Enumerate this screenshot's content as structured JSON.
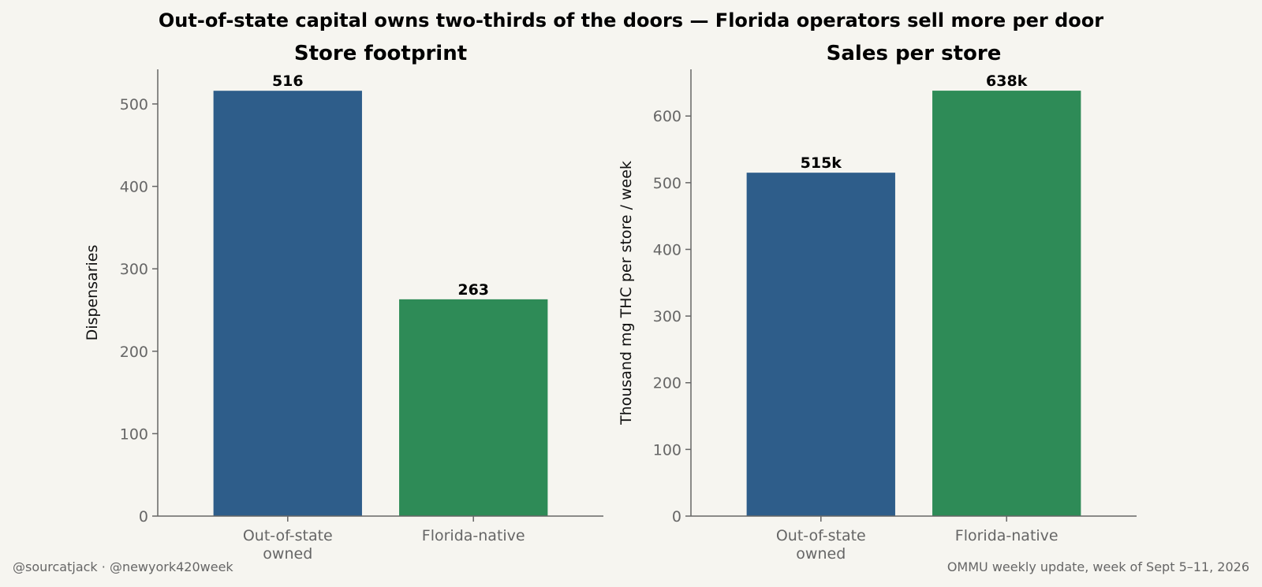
{
  "title": "Out-of-state capital owns two-thirds of the doors — Florida operators sell more per door",
  "footer": {
    "left": "@sourcatjack · @newyork420week",
    "right": "OMMU weekly update, week of Sept 5–11, 2026"
  },
  "colors": {
    "out_of_state": "#2e5d8a",
    "florida_native": "#2e8b57",
    "background": "#f6f5f0",
    "axis": "#666666",
    "tick_text": "#666666"
  },
  "chart_data": [
    {
      "type": "bar",
      "title": "Store footprint",
      "categories": [
        "Out-of-state\nowned",
        "Florida-native"
      ],
      "values": [
        516,
        263
      ],
      "data_labels": [
        "516",
        "263"
      ],
      "xlabel": "",
      "ylabel": "Dispensaries",
      "ylim": [
        0,
        542
      ],
      "yticks": [
        0,
        100,
        200,
        300,
        400,
        500
      ],
      "grid": false,
      "legend": "none"
    },
    {
      "type": "bar",
      "title": "Sales per store",
      "categories": [
        "Out-of-state\nowned",
        "Florida-native"
      ],
      "values": [
        515,
        638
      ],
      "data_labels": [
        "515k",
        "638k"
      ],
      "xlabel": "",
      "ylabel": "Thousand mg THC per store / week",
      "ylim": [
        0,
        670
      ],
      "yticks": [
        0,
        100,
        200,
        300,
        400,
        500,
        600
      ],
      "grid": false,
      "legend": "none"
    }
  ]
}
